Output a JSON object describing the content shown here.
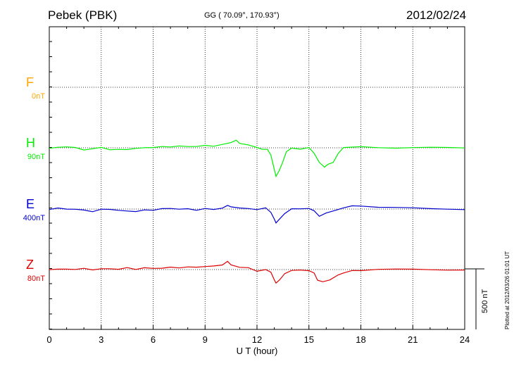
{
  "header": {
    "station": "Pebek (PBK)",
    "coords": "GG ( 70.09°, 170.93°)",
    "date": "2012/02/24"
  },
  "footer": {
    "plotted": "Plotted at 2012/03/26 01:01 UT"
  },
  "chart_data": {
    "type": "line",
    "title": "Pebek (PBK)",
    "xlabel": "U T (hour)",
    "xlim": [
      0,
      24
    ],
    "xticks": [
      "0",
      "3",
      "6",
      "9",
      "12",
      "15",
      "18",
      "21",
      "24"
    ],
    "grid": true,
    "scale_bar": "500 nT",
    "series": [
      {
        "name": "F",
        "scale": "0nT",
        "color": "#ffa500",
        "x": [],
        "y": []
      },
      {
        "name": "H",
        "scale": "90nT",
        "color": "#00ee00",
        "x": [
          0,
          0.5,
          1,
          1.5,
          2,
          2.5,
          3,
          3.5,
          4,
          4.5,
          5,
          5.5,
          6,
          6.5,
          7,
          7.5,
          8,
          8.5,
          9,
          9.5,
          10,
          10.5,
          10.8,
          11,
          11.5,
          12,
          12.3,
          12.6,
          12.8,
          13.0,
          13.1,
          13.3,
          13.5,
          13.7,
          14,
          14.5,
          15,
          15.3,
          15.6,
          15.9,
          16.1,
          16.4,
          16.7,
          17,
          17.5,
          18,
          19,
          20,
          21,
          22,
          23,
          24
        ],
        "y": [
          0,
          0,
          2,
          0,
          -3,
          -1,
          0,
          -2,
          -3,
          -2,
          -1,
          0,
          1,
          1,
          2,
          2,
          2,
          2,
          3,
          3,
          4,
          8,
          10,
          6,
          4,
          1,
          -2,
          -3,
          -10,
          -30,
          -40,
          -32,
          -20,
          -5,
          0,
          -2,
          0,
          -8,
          -20,
          -28,
          -24,
          -20,
          -8,
          0,
          1,
          2,
          1,
          0,
          0,
          0,
          0,
          0
        ]
      },
      {
        "name": "E",
        "scale": "400nT",
        "color": "#0000cc",
        "x": [
          0,
          0.5,
          1,
          1.5,
          2,
          2.5,
          3,
          3.5,
          4,
          4.5,
          5,
          5.5,
          6,
          6.5,
          7,
          7.5,
          8,
          8.5,
          9,
          9.5,
          10,
          10.3,
          10.5,
          11,
          11.5,
          12,
          12.5,
          12.8,
          13,
          13.1,
          13.3,
          13.6,
          14,
          14.5,
          15,
          15.3,
          15.6,
          16,
          16.5,
          17,
          17.5,
          18,
          19,
          20,
          21,
          22,
          23,
          24
        ],
        "y": [
          0,
          1,
          0,
          0,
          -2,
          -3,
          -1,
          0,
          -2,
          -3,
          -3,
          -2,
          -1,
          0,
          1,
          0,
          0,
          -1,
          0,
          0,
          1,
          6,
          3,
          2,
          0,
          0,
          1,
          -4,
          -14,
          -20,
          -15,
          -6,
          0,
          1,
          0,
          -2,
          -10,
          -6,
          -2,
          2,
          4,
          5,
          3,
          2,
          1,
          0,
          0,
          0
        ]
      },
      {
        "name": "Z",
        "scale": "80nT",
        "color": "#dd0000",
        "x": [
          0,
          0.5,
          1,
          1.5,
          2,
          2.5,
          3,
          3.5,
          4,
          4.5,
          5,
          5.5,
          6,
          6.5,
          7,
          7.5,
          8,
          8.5,
          9,
          9.5,
          10,
          10.3,
          10.5,
          11,
          11.5,
          12,
          12.5,
          12.8,
          13,
          13.1,
          13.3,
          13.6,
          14,
          14.5,
          15,
          15.3,
          15.5,
          15.8,
          16.2,
          16.7,
          17,
          17.5,
          18,
          19,
          20,
          21,
          22,
          23,
          24
        ],
        "y": [
          0,
          1,
          0,
          1,
          1,
          0,
          1,
          1,
          1,
          2,
          1,
          2,
          2,
          2,
          3,
          3,
          3,
          4,
          4,
          5,
          7,
          12,
          6,
          4,
          2,
          -2,
          0,
          -3,
          -15,
          -20,
          -15,
          -5,
          -2,
          0,
          -2,
          -4,
          -15,
          -18,
          -14,
          -8,
          -4,
          -2,
          -1,
          0,
          0,
          0,
          0,
          0,
          0
        ]
      }
    ]
  }
}
